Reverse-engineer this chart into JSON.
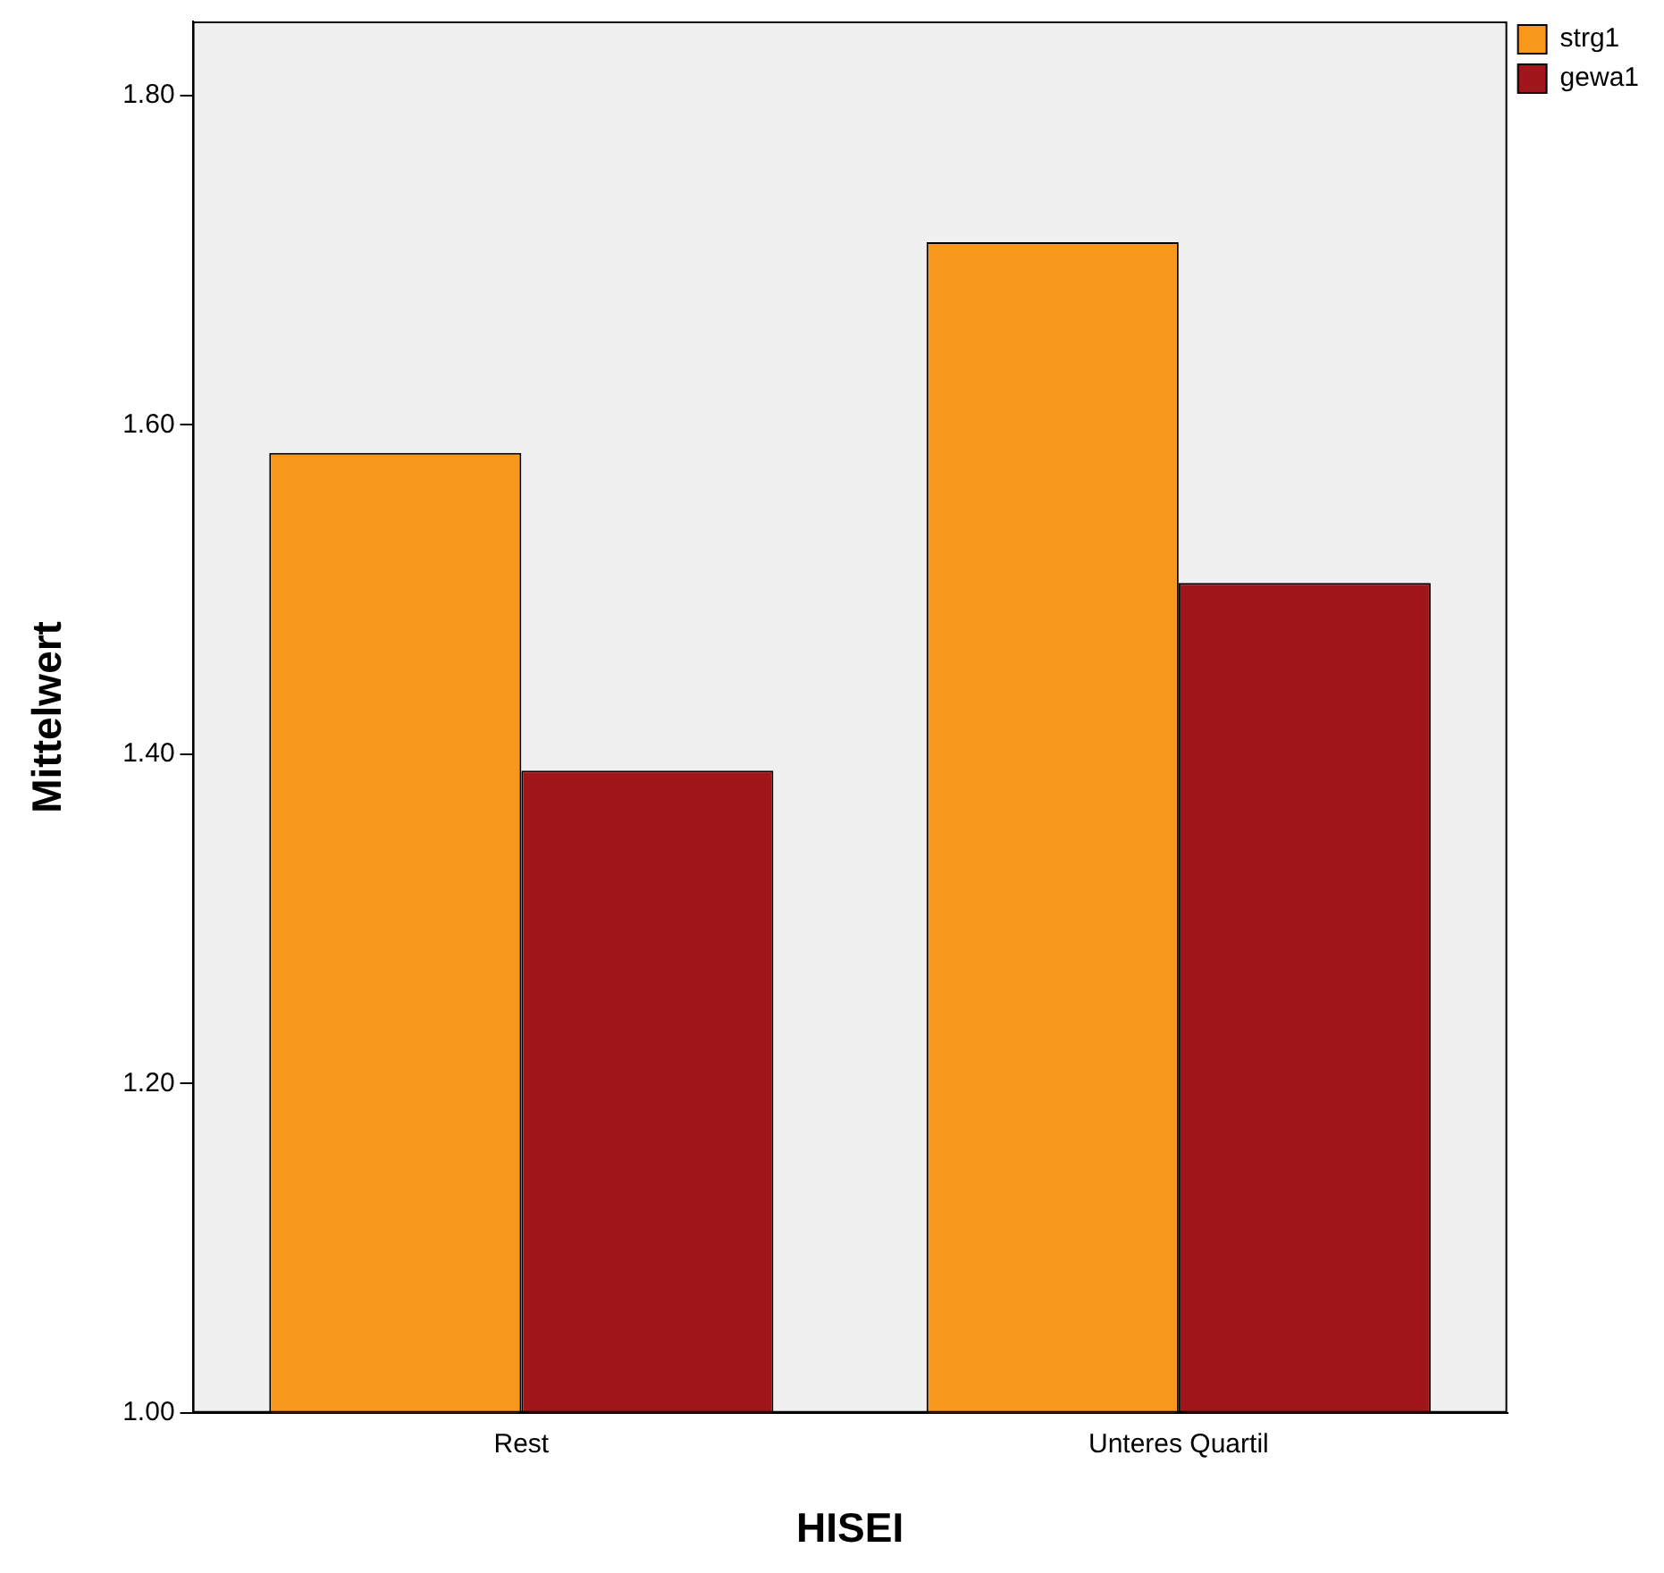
{
  "chart_data": {
    "type": "bar",
    "xlabel": "HISEI",
    "ylabel": "Mittelwert",
    "categories": [
      "Rest",
      "Unteres Quartil"
    ],
    "series": [
      {
        "name": "strg1",
        "color": "#f7981d",
        "values": [
          1.583,
          1.711
        ]
      },
      {
        "name": "gewa1",
        "color": "#a0161a",
        "values": [
          1.39,
          1.504
        ]
      }
    ],
    "ylim": [
      1.0,
      1.845
    ],
    "yticks": [
      {
        "value": 1.0,
        "label": "1.00"
      },
      {
        "value": 1.2,
        "label": "1.20"
      },
      {
        "value": 1.4,
        "label": "1.40"
      },
      {
        "value": 1.6,
        "label": "1.60"
      },
      {
        "value": 1.8,
        "label": "1.80"
      }
    ],
    "grid": false,
    "legend": "top right"
  }
}
